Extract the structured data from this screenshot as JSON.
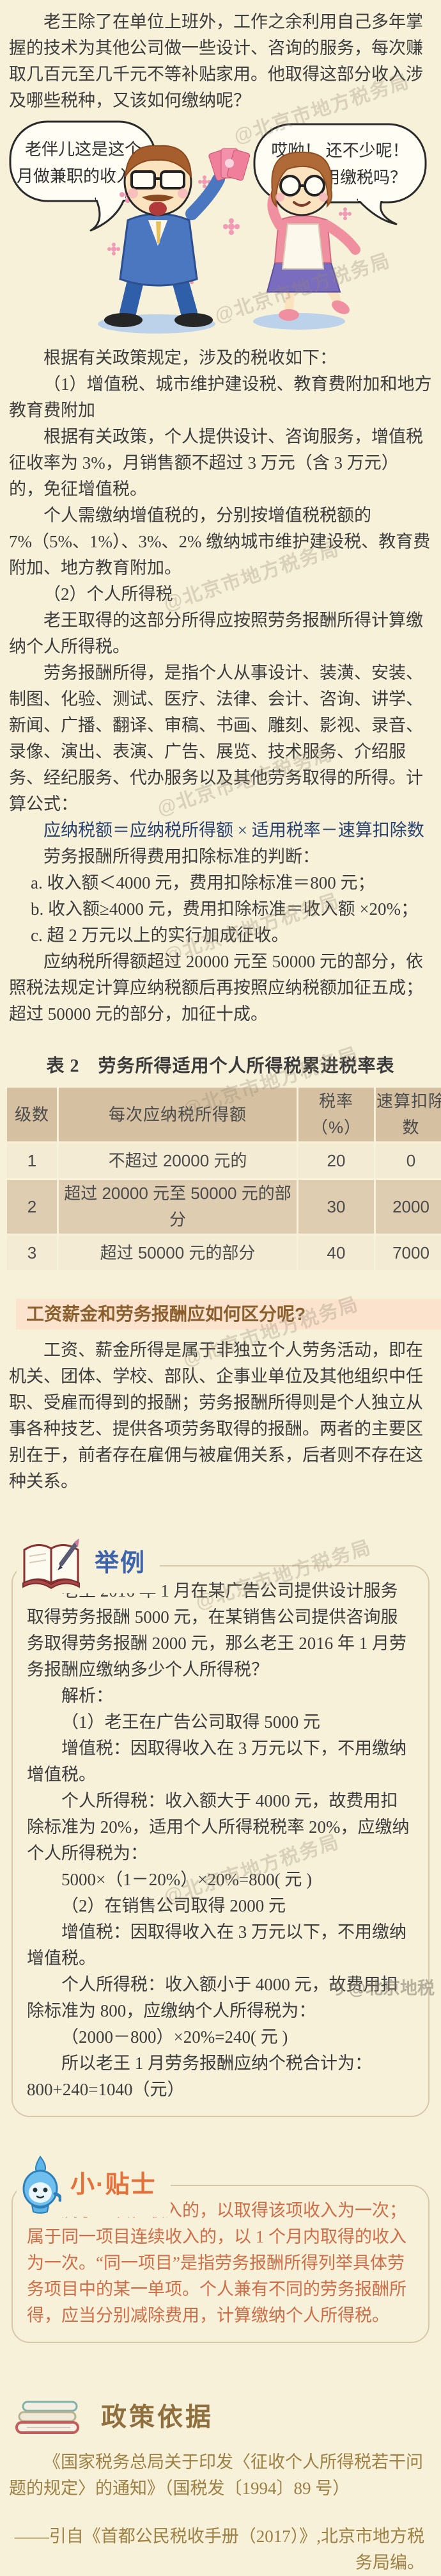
{
  "page": {
    "watermark": "@北京市地方税务局",
    "watermark_logo": "@北京地税",
    "bg_color": "#f8f1da",
    "accent_orange": "#e4703a",
    "accent_blue": "#3d63ad",
    "table_header_color": "#d5c1a1"
  },
  "intro": {
    "text": "老王除了在单位上班外，工作之余利用自己多年掌握的技术为其他公司做一些设计、咨询的服务，每次赚取几百元至几千元不等补贴家用。他取得这部分收入涉及哪些税种，又该如何缴纳呢？"
  },
  "cartoon": {
    "bubble_left_line1": "老伴儿这是这个",
    "bubble_left_line2": "月做兼职的收入。",
    "bubble_right_line1": "哎呦！ 还不少呢！",
    "bubble_right_line2": "这个还用缴税吗？"
  },
  "policy": {
    "lead": "根据有关政策规定，涉及的税收如下：",
    "item1_title": "（1）增值税、城市维护建设税、教育费附加和地方教育费附加",
    "item1_p1": "根据有关政策，个人提供设计、咨询服务，增值税征收率为 3%，月销售额不超过 3 万元（含 3 万元）的，免征增值税。",
    "item1_p2": "个人需缴纳增值税的，分别按增值税税额的 7%（5%、1%）、3%、2% 缴纳城市维护建设税、教育费附加、地方教育附加。",
    "item2_title": "（2）个人所得税",
    "item2_p1": "老王取得的这部分所得应按照劳务报酬所得计算缴纳个人所得税。",
    "item2_p2": "劳务报酬所得，是指个人从事设计、装潢、安装、制图、化验、测试、医疗、法律、会计、咨询、讲学、新闻、广播、翻译、审稿、书画、雕刻、影视、录音、录像、演出、表演、广告、展览、技术服务、介绍服务、经纪服务、代办服务以及其他劳务取得的所得。计算公式：",
    "formula": "应纳税额＝应纳税所得额 × 适用税率－速算扣除数",
    "deduction_lead": "劳务报酬所得费用扣除标准的判断：",
    "deduction_a": "a. 收入额＜4000 元，费用扣除标准＝800 元；",
    "deduction_b": "b. 收入额≥4000 元，费用扣除标准＝收入额 ×20%；",
    "deduction_c": "c. 超 2 万元以上的实行加成征收。",
    "surcharge": "应纳税所得额超过 20000 元至 50000 元的部分，依照税法规定计算应纳税额后再按照应纳税额加征五成；超过 50000 元的部分，加征十成。"
  },
  "table": {
    "title": "表 2　劳务所得适用个人所得税累进税率表",
    "headers": [
      "级数",
      "每次应纳税所得额",
      "税率（%）",
      "速算扣除数"
    ],
    "rows": [
      [
        "1",
        "不超过 20000 元的",
        "20",
        "0"
      ],
      [
        "2",
        "超过 20000 元至 50000 元的部分",
        "30",
        "2000"
      ],
      [
        "3",
        "超过 50000 元的部分",
        "40",
        "7000"
      ]
    ]
  },
  "distinction": {
    "heading": "工资薪金和劳务报酬应如何区分呢?",
    "body": "工资、薪金所得是属于非独立个人劳务活动，即在机关、团体、学校、部队、企事业单位及其他组织中任职、受雇而得到的报酬；劳务报酬所得则是个人独立从事各种技艺、提供各项劳务取得的报酬。两者的主要区别在于，前者存在雇佣与被雇佣关系，后者则不存在这种关系。"
  },
  "example": {
    "title": "举例",
    "paras": [
      {
        "text": "老王 2016 年 1 月在某广告公司提供设计服务取得劳务报酬 5000 元，在某销售公司提供咨询服务取得劳务报酬 2000 元，那么老王 2016 年 1 月劳务报酬应缴纳多少个人所得税？",
        "cls": ""
      },
      {
        "text": "解析：",
        "cls": ""
      },
      {
        "text": "（1）老王在广告公司取得 5000 元",
        "cls": ""
      },
      {
        "text": "增值税：因取得收入在 3 万元以下，不用缴纳增值税。",
        "cls": ""
      },
      {
        "text": "个人所得税：收入额大于 4000 元，故费用扣除标准为 20%，适用个人所得税税率 20%，应缴纳个人所得税为：",
        "cls": ""
      },
      {
        "text": "5000×（1－20%）×20%=800( 元 )",
        "cls": ""
      },
      {
        "text": "（2）在销售公司取得 2000 元",
        "cls": ""
      },
      {
        "text": "增值税：因取得收入在 3 万元以下，不用缴纳增值税。",
        "cls": ""
      },
      {
        "text": "个人所得税：收入额小于 4000 元，故费用扣除标准为 800，应缴纳个人所得税为：",
        "cls": ""
      },
      {
        "text": "（2000－800）×20%=240( 元 )",
        "cls": ""
      },
      {
        "text": "所以老王 1 月劳务报酬应纳个税合计为：800+240=1040（元）",
        "cls": ""
      }
    ]
  },
  "tips": {
    "title": "小·贴士",
    "body": "属于一次性收入的，以取得该项收入为一次；属于同一项目连续收入的，以 1 个月内取得的收入为一次。“同一项目”是指劳务报酬所得列举具体劳务项目中的某一单项。个人兼有不同的劳务报酬所得，应当分别减除费用，计算缴纳个人所得税。"
  },
  "basis": {
    "title": "政策依据",
    "citation": "《国家税务总局关于印发〈征收个人所得税若干问题的规定〉的通知》（国税发〔1994〕89 号）",
    "source": "——引自《首都公民税收手册（2017）》,北京市地方税务局编。"
  }
}
